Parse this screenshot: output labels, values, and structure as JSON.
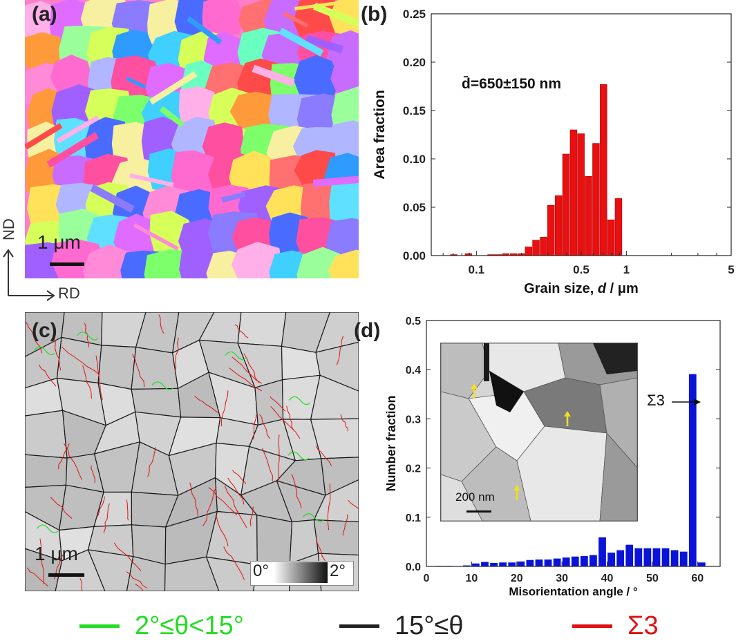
{
  "panels": {
    "a": {
      "label": "(a)",
      "scale_bar": "1 μm",
      "axis_nd": "ND",
      "axis_rd": "RD"
    },
    "b": {
      "label": "(b)"
    },
    "c": {
      "label": "(c)",
      "scale_bar": "1 μm",
      "gradient_min": "0°",
      "gradient_max": "2°"
    },
    "d": {
      "label": "(d)",
      "inset_scale": "200 nm",
      "sigma3_label": "Σ3"
    }
  },
  "legend": [
    {
      "text": "2°≤θ<15°",
      "color": "#22dd22"
    },
    {
      "text": "15°≤θ",
      "color": "#222222"
    },
    {
      "text": "Σ3",
      "color": "#e01010"
    }
  ],
  "colors": {
    "bar_b": "#e81010",
    "bar_d": "#0a14d8",
    "arrow_inset": "#f0e020"
  },
  "chart_data": [
    {
      "id": "b",
      "type": "bar",
      "xscale": "log",
      "xlabel_prefix": "Grain size, ",
      "xlabel_var": "d",
      "xlabel_suffix": " / μm",
      "ylabel": "Area fraction",
      "xlim": [
        0.05,
        5
      ],
      "ylim": [
        0,
        0.25
      ],
      "xticks": [
        0.1,
        0.5,
        1,
        5
      ],
      "xtick_labels": [
        "0.1",
        "0.5",
        "1",
        "5"
      ],
      "yticks": [
        0,
        0.05,
        0.1,
        0.15,
        0.2,
        0.25
      ],
      "ytick_labels": [
        "0.00",
        "0.05",
        "0.10",
        "0.15",
        "0.20",
        "0.25"
      ],
      "annotation": "d̄=650±150 nm",
      "bin_width_log": 0.05,
      "x": [
        0.071,
        0.089,
        0.126,
        0.141,
        0.158,
        0.178,
        0.2,
        0.224,
        0.251,
        0.282,
        0.316,
        0.355,
        0.398,
        0.447,
        0.501,
        0.562,
        0.631,
        0.708,
        0.794,
        0.891,
        1.0,
        1.122,
        1.259,
        1.413,
        1.585
      ],
      "values": [
        0.001,
        0.002,
        0.001,
        0.001,
        0.002,
        0.002,
        0.002,
        0.009,
        0.016,
        0.019,
        0.052,
        0.062,
        0.105,
        0.13,
        0.126,
        0.082,
        0.116,
        0.177,
        0.037,
        0.059,
        0,
        0,
        0,
        0,
        0
      ]
    },
    {
      "id": "d",
      "type": "bar",
      "xlabel": "Misorientation angle / °",
      "ylabel": "Number fraction",
      "xlim": [
        0,
        65
      ],
      "ylim": [
        0,
        0.5
      ],
      "xticks": [
        0,
        10,
        20,
        30,
        40,
        50,
        60
      ],
      "xtick_labels": [
        "0",
        "10",
        "20",
        "30",
        "40",
        "50",
        "60"
      ],
      "yticks": [
        0,
        0.1,
        0.2,
        0.3,
        0.4,
        0.5
      ],
      "ytick_labels": [
        "0.0",
        "0.1",
        "0.2",
        "0.3",
        "0.4",
        "0.5"
      ],
      "bin_width": 1.8,
      "x": [
        3,
        5,
        9,
        11,
        13,
        15,
        17,
        19,
        21,
        23,
        25,
        27,
        29,
        31,
        33,
        35,
        37,
        39,
        41,
        43,
        45,
        47,
        49,
        51,
        53,
        55,
        57,
        59,
        61
      ],
      "values": [
        0.001,
        0.001,
        0.002,
        0.006,
        0.009,
        0.007,
        0.008,
        0.008,
        0.01,
        0.013,
        0.014,
        0.014,
        0.016,
        0.018,
        0.02,
        0.021,
        0.023,
        0.059,
        0.028,
        0.033,
        0.044,
        0.037,
        0.037,
        0.037,
        0.037,
        0.033,
        0.03,
        0.391,
        0.008
      ]
    }
  ]
}
